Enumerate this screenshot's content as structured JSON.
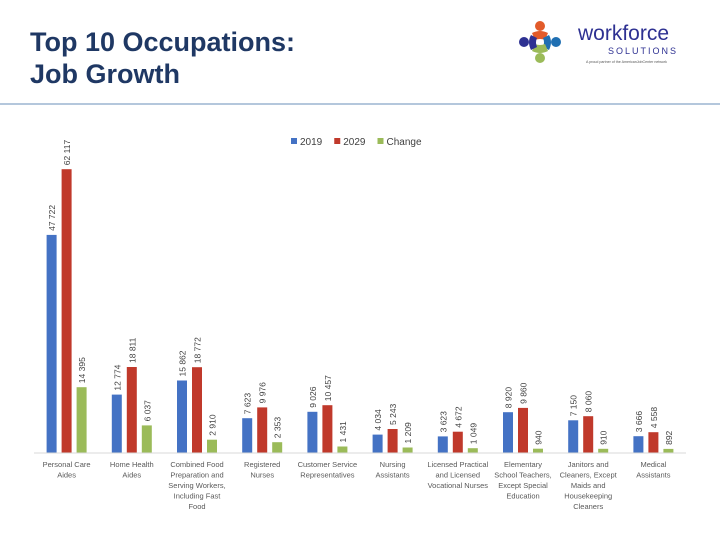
{
  "header": {
    "title_line1": "Top 10 Occupations:",
    "title_line2": "Job Growth"
  },
  "logo": {
    "name_line1": "workforce",
    "name_line2": "SOLUTIONS",
    "tagline": "A proud partner of the AmericanJobCenter network",
    "colors": [
      "#e25b2a",
      "#1f6fb2",
      "#9bbb59",
      "#2e3192"
    ]
  },
  "chart_data": {
    "type": "bar",
    "categories": [
      "Personal Care Aides",
      "Home Health Aides",
      "Combined Food Preparation and Serving Workers, Including Fast Food",
      "Registered Nurses",
      "Customer Service Representatives",
      "Nursing Assistants",
      "Licensed Practical and Licensed Vocational Nurses",
      "Elementary School Teachers, Except Special Education",
      "Janitors and Cleaners, Except Maids and Housekeeping Cleaners",
      "Medical Assistants"
    ],
    "series": [
      {
        "name": "2019",
        "color": "#4472c4",
        "values": [
          47722,
          12774,
          15862,
          7623,
          9026,
          4034,
          3623,
          8920,
          7150,
          3666
        ],
        "labels": [
          "47 722",
          "12 774",
          "15 862",
          "7 623",
          "9 026",
          "4 034",
          "3 623",
          "8 920",
          "7 150",
          "3 666"
        ]
      },
      {
        "name": "2029",
        "color": "#c0392b",
        "values": [
          62117,
          18811,
          18772,
          9976,
          10457,
          5243,
          4672,
          9860,
          8060,
          4558
        ],
        "labels": [
          "62 117",
          "18 811",
          "18 772",
          "9 976",
          "10 457",
          "5 243",
          "4 672",
          "9 860",
          "8 060",
          "4 558"
        ]
      },
      {
        "name": "Change",
        "color": "#9bbb59",
        "values": [
          14395,
          6037,
          2910,
          2353,
          1431,
          1209,
          1049,
          940,
          910,
          892
        ],
        "labels": [
          "14 395",
          "6 037",
          "2 910",
          "2 353",
          "1 431",
          "1 209",
          "1 049",
          "940",
          "910",
          "892"
        ]
      }
    ],
    "ylim": [
      0,
      65000
    ],
    "grid": false,
    "legend": "top-center"
  }
}
